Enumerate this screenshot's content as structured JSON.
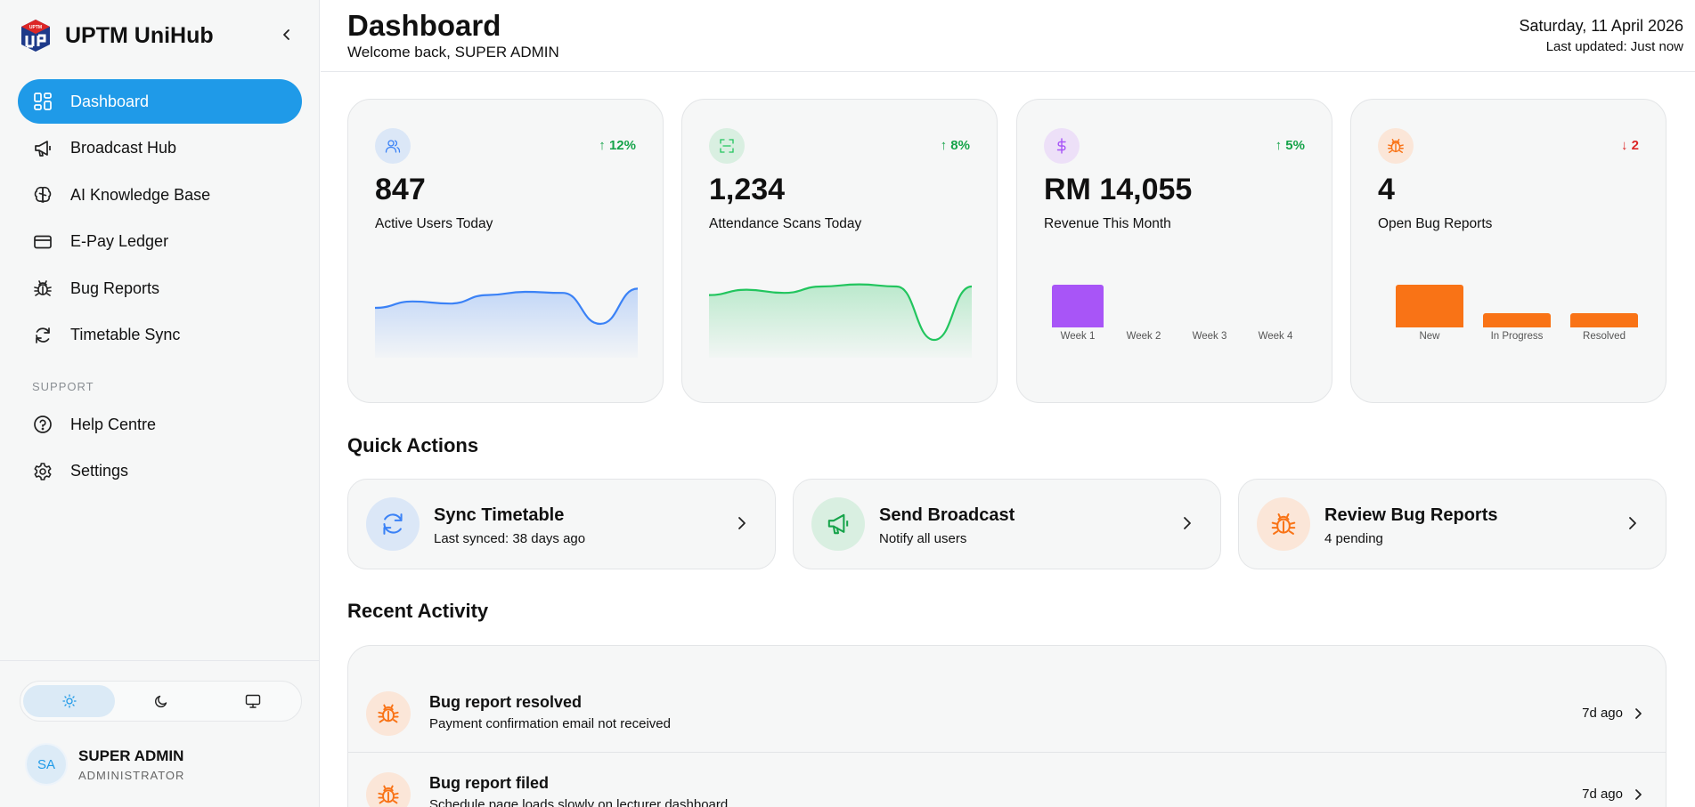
{
  "brand": {
    "name": "UPTM UniHub",
    "logo_text": "UPTM"
  },
  "sidebar": {
    "items": [
      {
        "label": "Dashboard",
        "icon": "dashboard-icon"
      },
      {
        "label": "Broadcast Hub",
        "icon": "megaphone-icon"
      },
      {
        "label": "AI Knowledge Base",
        "icon": "brain-icon"
      },
      {
        "label": "E-Pay Ledger",
        "icon": "credit-card-icon"
      },
      {
        "label": "Bug Reports",
        "icon": "bug-icon"
      },
      {
        "label": "Timetable Sync",
        "icon": "refresh-icon"
      }
    ],
    "section_label": "SUPPORT",
    "support_items": [
      {
        "label": "Help Centre",
        "icon": "help-icon"
      },
      {
        "label": "Settings",
        "icon": "gear-icon"
      }
    ],
    "theme_options": [
      "light",
      "dark",
      "system"
    ],
    "theme_selected": "light"
  },
  "user": {
    "initials": "SA",
    "name": "SUPER ADMIN",
    "role": "ADMINISTRATOR"
  },
  "header": {
    "title": "Dashboard",
    "welcome": "Welcome back, SUPER ADMIN",
    "date": "Saturday, 11 April 2026",
    "updated": "Last updated: Just now"
  },
  "stats": [
    {
      "value": "847",
      "label": "Active Users Today",
      "trend": "↑ 12%",
      "trend_dir": "up",
      "icon": "users-icon",
      "color": "#3b82f6"
    },
    {
      "value": "1,234",
      "label": "Attendance Scans Today",
      "trend": "↑ 8%",
      "trend_dir": "up",
      "icon": "scan-icon",
      "color": "#22c55e"
    },
    {
      "value": "RM 14,055",
      "label": "Revenue This Month",
      "trend": "↑ 5%",
      "trend_dir": "up",
      "icon": "dollar-icon",
      "color": "#a855f7"
    },
    {
      "value": "4",
      "label": "Open Bug Reports",
      "trend": "↓ 2",
      "trend_dir": "down",
      "icon": "bug-icon",
      "color": "#f97316"
    }
  ],
  "chart_data": [
    {
      "type": "area",
      "series": [
        {
          "values": [
            30,
            36,
            34,
            42,
            45,
            44,
            15,
            48
          ]
        }
      ],
      "color": "#3b82f6"
    },
    {
      "type": "area",
      "series": [
        {
          "values": [
            42,
            47,
            44,
            50,
            52,
            50,
            0,
            50
          ]
        }
      ],
      "color": "#22c55e"
    },
    {
      "type": "bar",
      "categories": [
        "Week 1",
        "Week 2",
        "Week 3",
        "Week 4"
      ],
      "values": [
        14055,
        0,
        0,
        0
      ],
      "color": "#a855f7"
    },
    {
      "type": "bar",
      "categories": [
        "New",
        "In Progress",
        "Resolved"
      ],
      "values": [
        3,
        1,
        1
      ],
      "color": "#f97316"
    }
  ],
  "quick_actions": {
    "title": "Quick Actions",
    "items": [
      {
        "title": "Sync Timetable",
        "sub": "Last synced: 38 days ago",
        "icon": "refresh-icon",
        "color": "#3b82f6",
        "bg": "#dbe7f7"
      },
      {
        "title": "Send Broadcast",
        "sub": "Notify all users",
        "icon": "megaphone-icon",
        "color": "#16a34a",
        "bg": "#d9efe1"
      },
      {
        "title": "Review Bug Reports",
        "sub": "4 pending",
        "icon": "bug-icon",
        "color": "#f97316",
        "bg": "#fbe6d8"
      }
    ]
  },
  "recent_activity": {
    "title": "Recent Activity",
    "items": [
      {
        "title": "Bug report resolved",
        "sub": "Payment confirmation email not received",
        "time": "7d ago"
      },
      {
        "title": "Bug report filed",
        "sub": "Schedule page loads slowly on lecturer dashboard",
        "time": "7d ago"
      }
    ]
  }
}
